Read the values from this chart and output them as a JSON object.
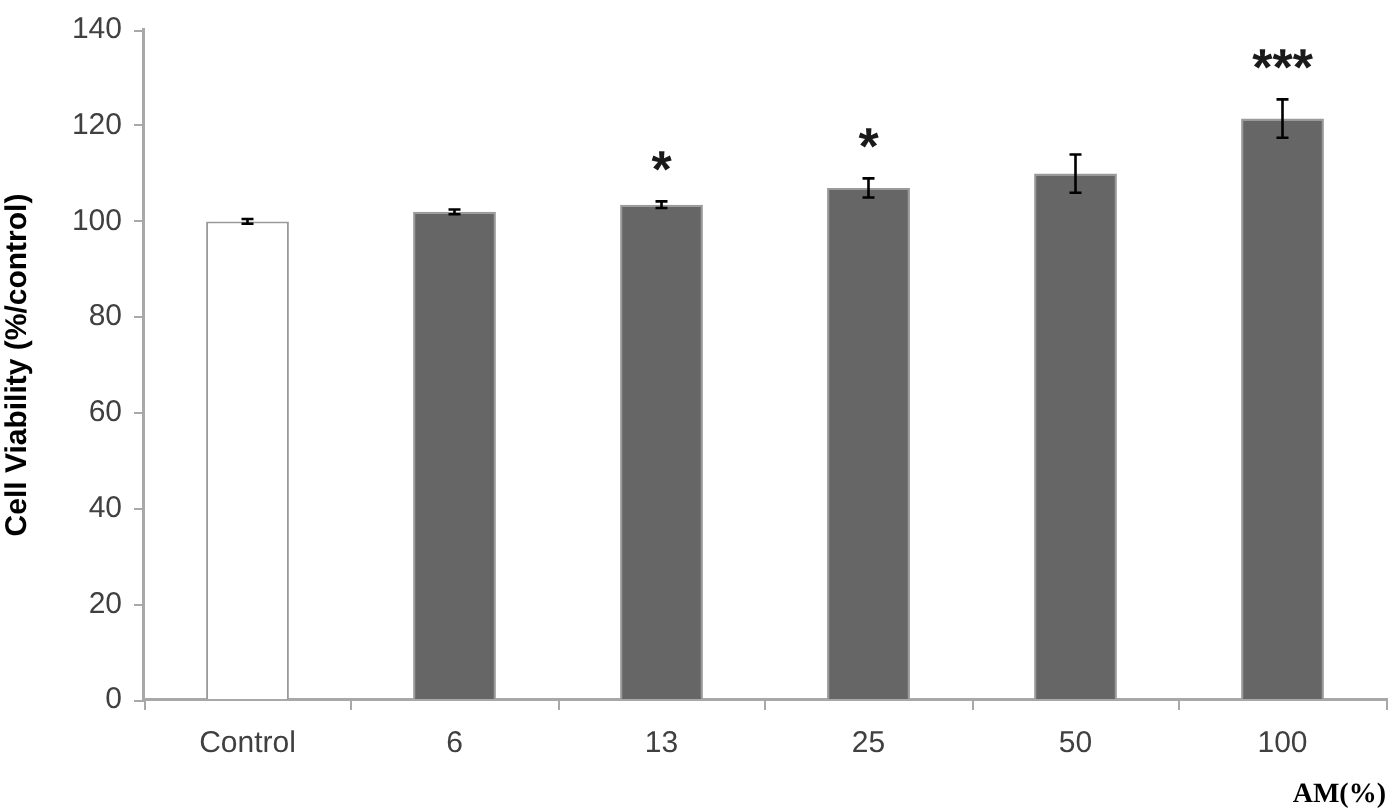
{
  "chart_data": {
    "type": "bar",
    "categories": [
      "Control",
      "6",
      "13",
      "25",
      "50",
      "100"
    ],
    "values": [
      100,
      102,
      103.5,
      107,
      110,
      121.5
    ],
    "errors": [
      0.5,
      0.5,
      0.7,
      2,
      4,
      4
    ],
    "colors": [
      "#ffffff",
      "#666666",
      "#666666",
      "#666666",
      "#666666",
      "#666666"
    ],
    "xlabel": "AM(%)",
    "ylabel": "Cell Viability (%/control)",
    "ylim": [
      0,
      140
    ],
    "yticks": [
      0,
      20,
      40,
      60,
      80,
      100,
      120,
      140
    ],
    "grid": false,
    "legend": false,
    "annotations": [
      {
        "text": "*",
        "x": "13",
        "y": 103.5
      },
      {
        "text": "*",
        "x": "25",
        "y": 107
      },
      {
        "text": "***",
        "x": "100",
        "y": 121.5
      }
    ]
  }
}
